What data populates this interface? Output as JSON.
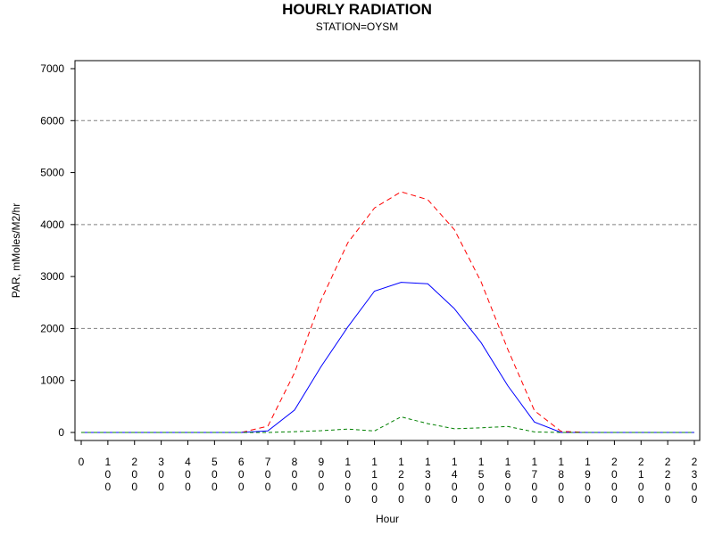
{
  "chart_data": {
    "type": "line",
    "title": "HOURLY RADIATION",
    "subtitle": "STATION=OYSM",
    "xlabel": "Hour",
    "ylabel": "PAR, mMoles/M2/hr",
    "ylim": [
      0,
      7000
    ],
    "yticks": [
      0,
      1000,
      2000,
      3000,
      4000,
      5000,
      6000,
      7000
    ],
    "gridlines_y": [
      2000,
      4000,
      6000
    ],
    "categories": [
      "0",
      "100",
      "200",
      "300",
      "400",
      "500",
      "600",
      "700",
      "800",
      "900",
      "1000",
      "1100",
      "1200",
      "1300",
      "1400",
      "1500",
      "1600",
      "1700",
      "1800",
      "1900",
      "2000",
      "2100",
      "2200",
      "2300"
    ],
    "series": [
      {
        "color": "#ff0000",
        "dash": "6,4",
        "values": [
          0,
          0,
          0,
          0,
          0,
          0,
          0,
          120,
          1150,
          2550,
          3650,
          4320,
          4630,
          4480,
          3900,
          2900,
          1600,
          420,
          20,
          0,
          0,
          0,
          0,
          0
        ]
      },
      {
        "color": "#0000ff",
        "dash": "",
        "values": [
          0,
          0,
          0,
          0,
          0,
          0,
          0,
          30,
          430,
          1270,
          2030,
          2720,
          2890,
          2860,
          2380,
          1730,
          900,
          200,
          0,
          0,
          0,
          0,
          0,
          0
        ]
      },
      {
        "color": "#008000",
        "dash": "4,3",
        "values": [
          0,
          0,
          0,
          0,
          0,
          0,
          0,
          0,
          15,
          35,
          65,
          30,
          300,
          170,
          70,
          90,
          115,
          10,
          0,
          0,
          0,
          0,
          0,
          0
        ]
      }
    ]
  }
}
